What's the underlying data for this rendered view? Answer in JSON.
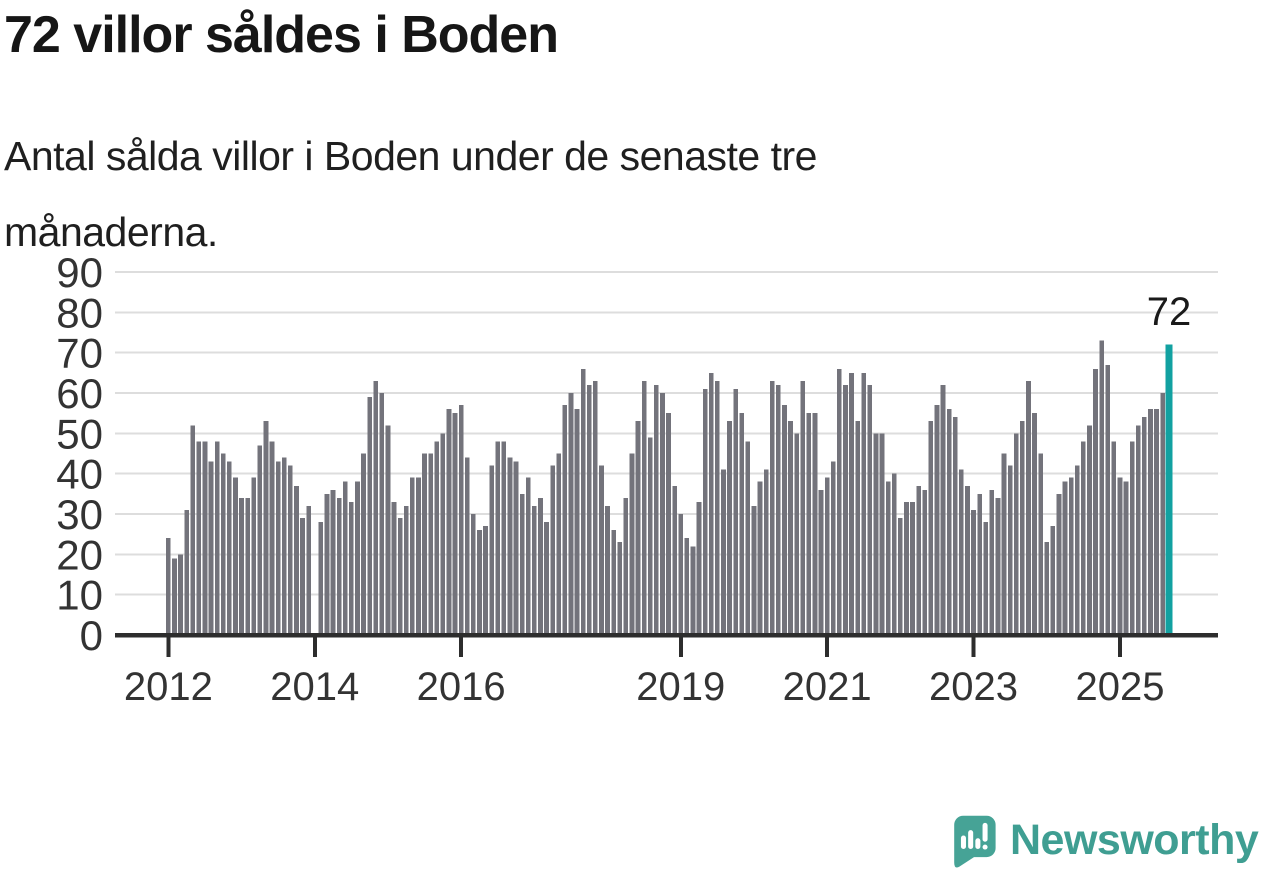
{
  "header": {
    "title": "72 villor såldes i Boden",
    "subtitle": "Antal sålda villor i Boden under de senaste tre månaderna."
  },
  "annotation": {
    "value_label": "72"
  },
  "logo": {
    "brand": "Newsworthy"
  },
  "colors": {
    "bar": "#73737b",
    "highlight": "#12a1a1",
    "axis": "#2d2d2d",
    "grid": "#dddddd",
    "label": "#333333",
    "title_text": "#161616",
    "logo_bubble": "#46a396",
    "logo_wordmark": "#3f9e92",
    "background": "#ffffff"
  },
  "chart_data": {
    "type": "bar",
    "title": "72 villor såldes i Boden",
    "subtitle": "Antal sålda villor i Boden under de senaste tre månaderna.",
    "xlabel": "",
    "ylabel": "",
    "ylim": [
      0,
      90
    ],
    "y_ticks": [
      0,
      10,
      20,
      30,
      40,
      50,
      60,
      70,
      80,
      90
    ],
    "grid": true,
    "x_start": "2012-01",
    "x_frequency": "monthly",
    "x_ticks": [
      {
        "label": "2012",
        "month_index": 0
      },
      {
        "label": "2014",
        "month_index": 24
      },
      {
        "label": "2016",
        "month_index": 48
      },
      {
        "label": "2019",
        "month_index": 84
      },
      {
        "label": "2021",
        "month_index": 108
      },
      {
        "label": "2023",
        "month_index": 132
      },
      {
        "label": "2025",
        "month_index": 156
      }
    ],
    "values": [
      24,
      19,
      20,
      31,
      52,
      48,
      48,
      43,
      48,
      45,
      43,
      39,
      34,
      34,
      39,
      47,
      53,
      48,
      43,
      44,
      42,
      37,
      29,
      32,
      0,
      28,
      35,
      36,
      34,
      38,
      33,
      38,
      45,
      59,
      63,
      60,
      52,
      33,
      29,
      32,
      39,
      39,
      45,
      45,
      48,
      50,
      56,
      55,
      57,
      44,
      30,
      26,
      27,
      42,
      48,
      48,
      44,
      43,
      35,
      39,
      32,
      34,
      28,
      42,
      45,
      57,
      60,
      56,
      66,
      62,
      63,
      42,
      32,
      26,
      23,
      34,
      45,
      53,
      63,
      49,
      62,
      60,
      55,
      37,
      30,
      24,
      22,
      33,
      61,
      65,
      63,
      41,
      53,
      61,
      55,
      48,
      32,
      38,
      41,
      63,
      62,
      57,
      53,
      50,
      63,
      55,
      55,
      36,
      39,
      43,
      66,
      62,
      65,
      53,
      65,
      62,
      50,
      50,
      38,
      40,
      29,
      33,
      33,
      37,
      36,
      53,
      57,
      62,
      56,
      54,
      41,
      37,
      31,
      35,
      28,
      36,
      34,
      45,
      42,
      50,
      53,
      63,
      55,
      45,
      23,
      27,
      35,
      38,
      39,
      42,
      48,
      52,
      66,
      73,
      67,
      48,
      39,
      38,
      48,
      52,
      54,
      56,
      56,
      60,
      72
    ],
    "highlight_index": 164,
    "highlight_value": 72,
    "highlight_label": "72",
    "legend": null
  }
}
